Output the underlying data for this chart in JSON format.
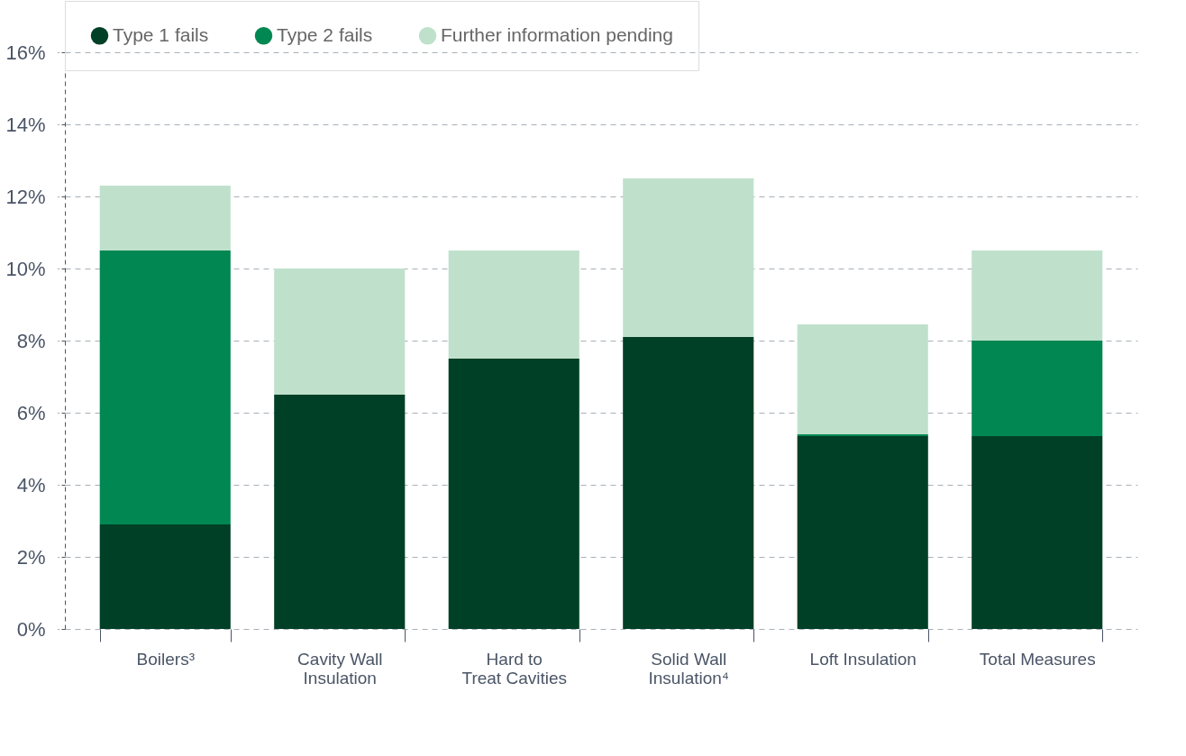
{
  "chart_data": {
    "type": "bar",
    "stacked": true,
    "categories": [
      "Boilers³",
      "Cavity Wall\nInsulation",
      "Hard to\nTreat Cavities",
      "Solid Wall\nInsulation⁴",
      "Loft Insulation",
      "Total Measures"
    ],
    "series": [
      {
        "name": "Type 1 fails",
        "color": "#004027",
        "values": [
          2.9,
          6.5,
          7.5,
          8.1,
          5.35,
          5.35
        ]
      },
      {
        "name": "Type 2 fails",
        "color": "#008752",
        "values": [
          7.6,
          0,
          0,
          0,
          0.05,
          2.65
        ]
      },
      {
        "name": "Further information pending",
        "color": "#bfe1cc",
        "values": [
          1.8,
          3.5,
          3.0,
          4.4,
          3.05,
          2.5
        ]
      }
    ],
    "ylim": [
      0,
      16
    ],
    "yticks": [
      {
        "value": 0,
        "label": "0%"
      },
      {
        "value": 2,
        "label": "2%"
      },
      {
        "value": 4,
        "label": "4%"
      },
      {
        "value": 6,
        "label": "6%"
      },
      {
        "value": 8,
        "label": "8%"
      },
      {
        "value": 10,
        "label": "10%"
      },
      {
        "value": 12,
        "label": "12%"
      },
      {
        "value": 14,
        "label": "14%"
      },
      {
        "value": 16,
        "label": "16%"
      }
    ],
    "grid": "y",
    "legend": "top"
  }
}
